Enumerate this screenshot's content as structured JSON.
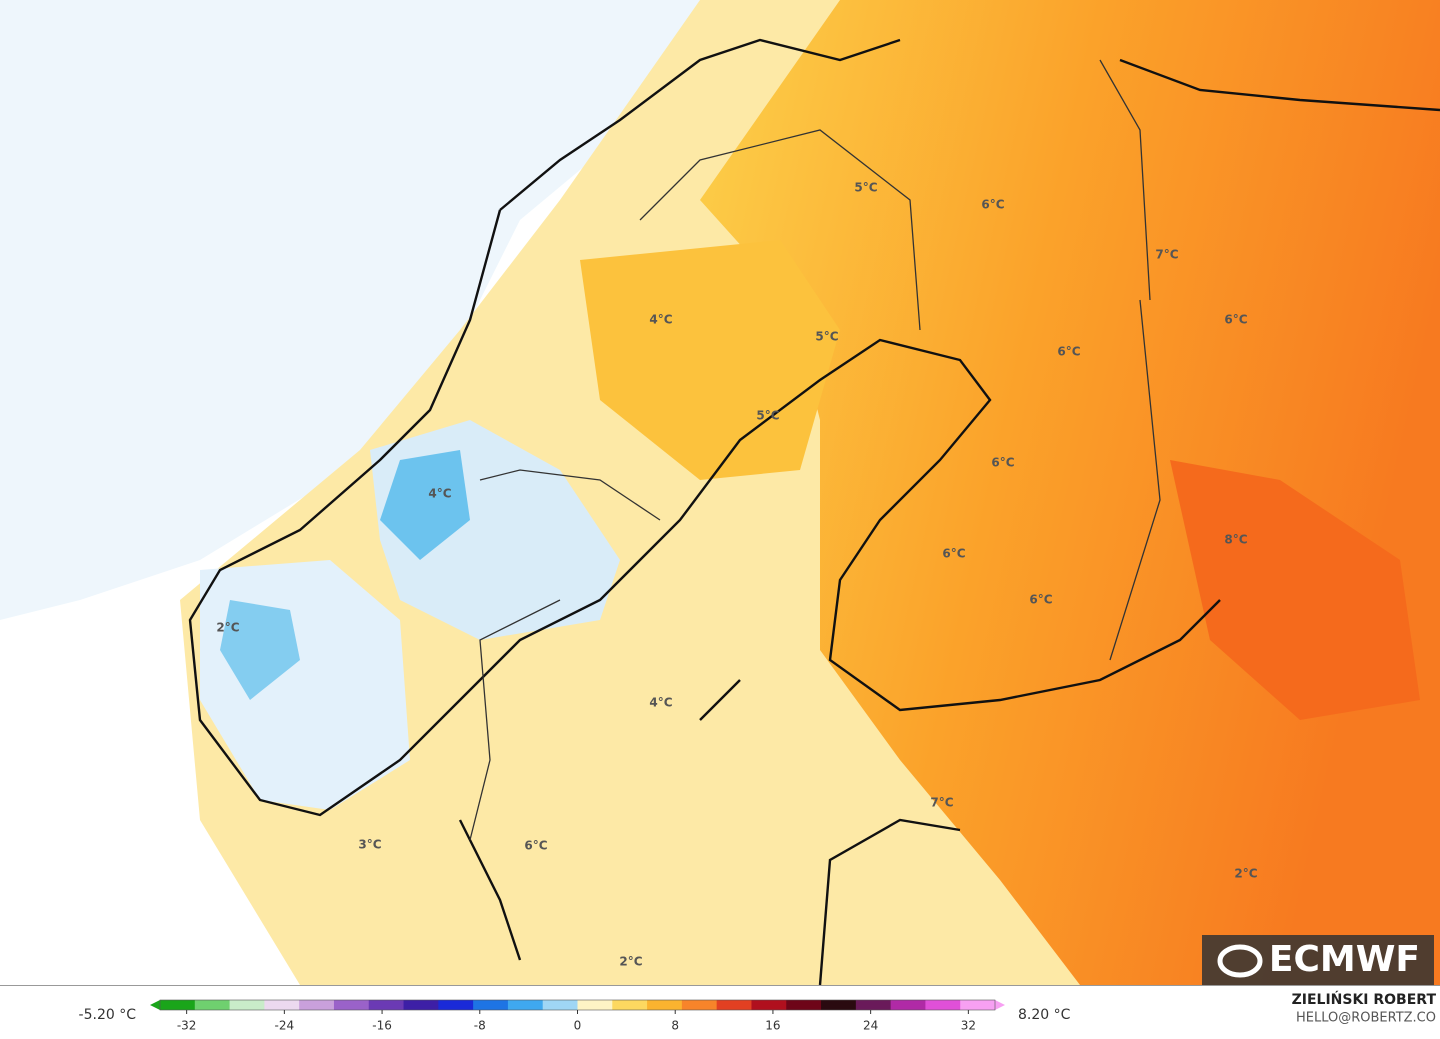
{
  "map": {
    "labels": [
      "5°C",
      "6°C",
      "7°C",
      "4°C",
      "5°C",
      "6°C",
      "6°C",
      "5°C",
      "4°C",
      "6°C",
      "6°C",
      "8°C",
      "6°C",
      "4°C",
      "7°C",
      "2°C",
      "3°C",
      "6°C",
      "2°C",
      "2°C"
    ],
    "logo": "ECMWF"
  },
  "colorbar": {
    "min_label": "-5.20 °C",
    "max_label": "8.20 °C",
    "lim": [
      -35,
      35
    ],
    "ticks": [
      -32,
      -24,
      -16,
      -8,
      0,
      8,
      16,
      24,
      32
    ]
  },
  "credit": {
    "author": "ZIELIŃSKI ROBERT",
    "contact": "HELLO@ROBERTZ.CO"
  }
}
